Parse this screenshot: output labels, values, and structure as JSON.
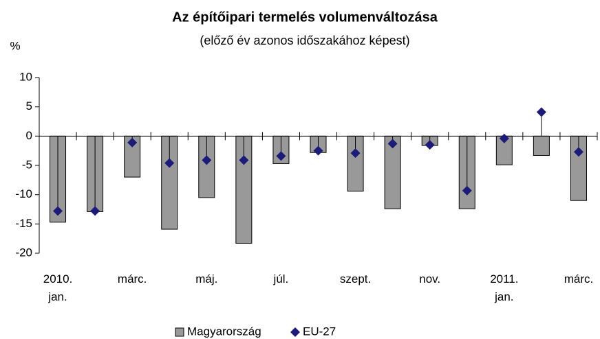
{
  "chart_data": {
    "type": "bar",
    "title": "Az építőipari termelés volumenváltozása",
    "subtitle": "(előző év azonos időszakához képest)",
    "ylabel": "%",
    "categories": [
      "2010. jan.",
      null,
      "márc.",
      null,
      "máj.",
      null,
      "júl.",
      null,
      "szept.",
      null,
      "nov.",
      null,
      "2011. jan.",
      null,
      "márc."
    ],
    "series": [
      {
        "name": "Magyarország",
        "color": "#999999",
        "values": [
          -14.7,
          -12.9,
          -7.0,
          -15.9,
          -10.5,
          -18.3,
          -4.7,
          -2.8,
          -9.4,
          -12.4,
          -1.6,
          -12.4,
          -4.9,
          -3.3,
          -11.0
        ]
      },
      {
        "name": "EU-27",
        "color": "#1c1c78",
        "values": [
          -12.8,
          -12.8,
          -1.1,
          -4.6,
          -4.1,
          -4.1,
          -3.4,
          -2.5,
          -2.9,
          -1.3,
          -1.5,
          -9.3,
          -0.4,
          4.1,
          -2.7
        ]
      }
    ],
    "ylim": [
      -20,
      10
    ],
    "yticks": [
      -20,
      -15,
      -10,
      -5,
      0,
      5,
      10
    ],
    "legend": "bottom"
  }
}
